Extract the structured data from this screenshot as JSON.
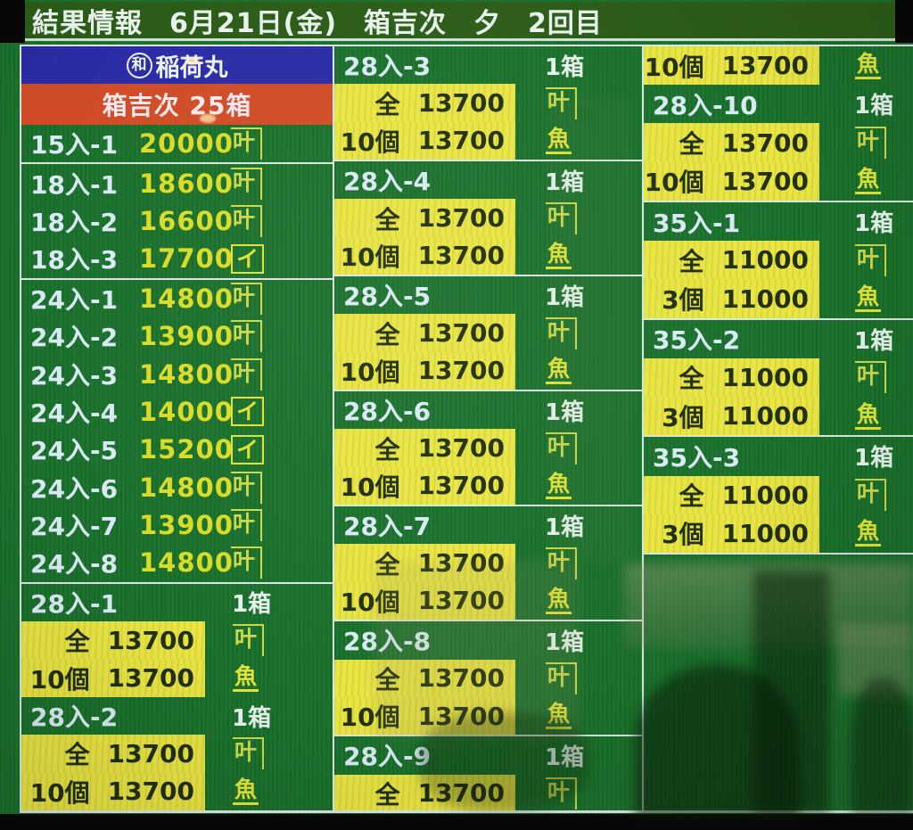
{
  "title_bar": {
    "report": "結果情報",
    "date": "6月21日(金)",
    "market": "箱吉次",
    "session": "夕",
    "round": "2回目"
  },
  "left_panel": {
    "boat": {
      "circled": "和",
      "name": "稲荷丸"
    },
    "banner": "箱吉次 25箱",
    "rows": [
      {
        "kind": "price",
        "label": "15入-1",
        "price": "20000",
        "mark": "kanau",
        "sep": true
      },
      {
        "kind": "price",
        "label": "18入-1",
        "price": "18600",
        "mark": "kanau"
      },
      {
        "kind": "price",
        "label": "18入-2",
        "price": "16600",
        "mark": "kanau"
      },
      {
        "kind": "price",
        "label": "18入-3",
        "price": "17700",
        "mark": "ibox",
        "sep": true
      },
      {
        "kind": "price",
        "label": "24入-1",
        "price": "14800",
        "mark": "kanau"
      },
      {
        "kind": "price",
        "label": "24入-2",
        "price": "13900",
        "mark": "kanau"
      },
      {
        "kind": "price",
        "label": "24入-3",
        "price": "14800",
        "mark": "kanau"
      },
      {
        "kind": "price",
        "label": "24入-4",
        "price": "14000",
        "mark": "ibox"
      },
      {
        "kind": "price",
        "label": "24入-5",
        "price": "15200",
        "mark": "ibox"
      },
      {
        "kind": "price",
        "label": "24入-6",
        "price": "14800",
        "mark": "kanau"
      },
      {
        "kind": "price",
        "label": "24入-7",
        "price": "13900",
        "mark": "kanau"
      },
      {
        "kind": "price",
        "label": "24入-8",
        "price": "14800",
        "mark": "kanau",
        "sep": true
      },
      {
        "kind": "lot",
        "label": "28入-1",
        "count": "1箱"
      },
      {
        "kind": "sale",
        "qty": "全",
        "price": "13700",
        "mark": "kanau"
      },
      {
        "kind": "sale",
        "qty": "10個",
        "price": "13700",
        "mark": "fish"
      },
      {
        "kind": "lot",
        "label": "28入-2",
        "count": "1箱"
      },
      {
        "kind": "sale",
        "qty": "全",
        "price": "13700",
        "mark": "kanau"
      },
      {
        "kind": "sale",
        "qty": "10個",
        "price": "13700",
        "mark": "fish"
      }
    ]
  },
  "middle_panel": {
    "rows": [
      {
        "kind": "lot",
        "label": "28入-3",
        "count": "1箱"
      },
      {
        "kind": "sale",
        "qty": "全",
        "price": "13700",
        "mark": "kanau"
      },
      {
        "kind": "sale",
        "qty": "10個",
        "price": "13700",
        "mark": "fish",
        "sep": true
      },
      {
        "kind": "lot",
        "label": "28入-4",
        "count": "1箱"
      },
      {
        "kind": "sale",
        "qty": "全",
        "price": "13700",
        "mark": "kanau"
      },
      {
        "kind": "sale",
        "qty": "10個",
        "price": "13700",
        "mark": "fish",
        "sep": true
      },
      {
        "kind": "lot",
        "label": "28入-5",
        "count": "1箱"
      },
      {
        "kind": "sale",
        "qty": "全",
        "price": "13700",
        "mark": "kanau"
      },
      {
        "kind": "sale",
        "qty": "10個",
        "price": "13700",
        "mark": "fish",
        "sep": true
      },
      {
        "kind": "lot",
        "label": "28入-6",
        "count": "1箱"
      },
      {
        "kind": "sale",
        "qty": "全",
        "price": "13700",
        "mark": "kanau"
      },
      {
        "kind": "sale",
        "qty": "10個",
        "price": "13700",
        "mark": "fish",
        "sep": true
      },
      {
        "kind": "lot",
        "label": "28入-7",
        "count": "1箱"
      },
      {
        "kind": "sale",
        "qty": "全",
        "price": "13700",
        "mark": "kanau"
      },
      {
        "kind": "sale",
        "qty": "10個",
        "price": "13700",
        "mark": "fish",
        "sep": true
      },
      {
        "kind": "lot",
        "label": "28入-8",
        "count": "1箱"
      },
      {
        "kind": "sale",
        "qty": "全",
        "price": "13700",
        "mark": "kanau"
      },
      {
        "kind": "sale",
        "qty": "10個",
        "price": "13700",
        "mark": "fish",
        "sep": true
      },
      {
        "kind": "lot",
        "label": "28入-9",
        "count": "1箱"
      },
      {
        "kind": "sale",
        "qty": "全",
        "price": "13700",
        "mark": "kanau"
      }
    ]
  },
  "right_panel": {
    "rows": [
      {
        "kind": "sale",
        "qty": "10個",
        "price": "13700",
        "mark": "fish"
      },
      {
        "kind": "lot",
        "label": "28入-10",
        "count": "1箱"
      },
      {
        "kind": "sale",
        "qty": "全",
        "price": "13700",
        "mark": "kanau"
      },
      {
        "kind": "sale",
        "qty": "10個",
        "price": "13700",
        "mark": "fish",
        "sep": true
      },
      {
        "kind": "lot",
        "label": "35入-1",
        "count": "1箱"
      },
      {
        "kind": "sale",
        "qty": "全",
        "price": "11000",
        "mark": "kanau"
      },
      {
        "kind": "sale",
        "qty": "3個",
        "price": "11000",
        "mark": "fish",
        "sep": true
      },
      {
        "kind": "lot",
        "label": "35入-2",
        "count": "1箱"
      },
      {
        "kind": "sale",
        "qty": "全",
        "price": "11000",
        "mark": "kanau"
      },
      {
        "kind": "sale",
        "qty": "3個",
        "price": "11000",
        "mark": "fish",
        "sep": true
      },
      {
        "kind": "lot",
        "label": "35入-3",
        "count": "1箱"
      },
      {
        "kind": "sale",
        "qty": "全",
        "price": "11000",
        "mark": "kanau"
      },
      {
        "kind": "sale",
        "qty": "3個",
        "price": "11000",
        "mark": "fish",
        "sep": true
      }
    ]
  },
  "marks": {
    "kanau": {
      "char": "叶",
      "style": "overline"
    },
    "fish": {
      "char": "魚",
      "style": "underline"
    },
    "ibox": {
      "char": "イ",
      "style": "box"
    }
  },
  "colors": {
    "screen_green": "#19702b",
    "titlebar_green": "#2b5c17",
    "highlight_yellow": "#e8e545",
    "price_yellow": "#d9dc25",
    "text_white": "#e8f3ee",
    "label_white": "#d9eaf4",
    "dark_text": "#22300c",
    "boat_banner_blue": "#2b2ba4",
    "lot_banner_red": "#d04c26",
    "mark_yellow": "#cdd84a",
    "grid_line": "#d9e6e2",
    "bezel_black": "#070707"
  }
}
